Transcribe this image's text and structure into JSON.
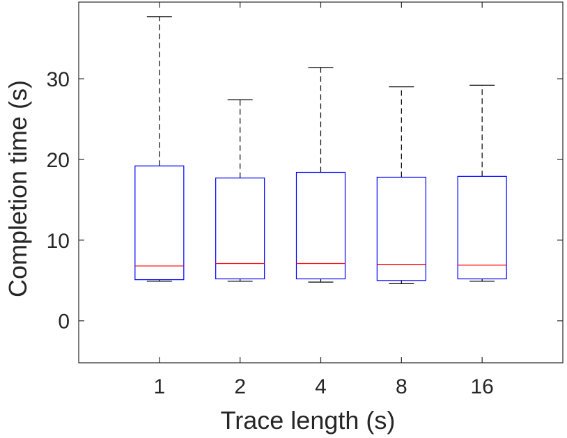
{
  "chart_data": {
    "type": "boxplot",
    "title": "",
    "xlabel": "Trace length (s)",
    "ylabel": "Completion time (s)",
    "categories": [
      "1",
      "2",
      "4",
      "8",
      "16"
    ],
    "ylim": [
      -5.2,
      39.5
    ],
    "yticks": [
      0,
      10,
      20,
      30
    ],
    "ytick_labels": [
      "0",
      "10",
      "20",
      "30"
    ],
    "grid": false,
    "legend": "none",
    "boxes": [
      {
        "category": "1",
        "whisker_low": 4.9,
        "q1": 5.1,
        "median": 6.8,
        "q3": 19.2,
        "whisker_high": 37.7
      },
      {
        "category": "2",
        "whisker_low": 4.9,
        "q1": 5.2,
        "median": 7.1,
        "q3": 17.7,
        "whisker_high": 27.4
      },
      {
        "category": "4",
        "whisker_low": 4.8,
        "q1": 5.2,
        "median": 7.1,
        "q3": 18.4,
        "whisker_high": 31.4
      },
      {
        "category": "8",
        "whisker_low": 4.6,
        "q1": 5.0,
        "median": 7.0,
        "q3": 17.8,
        "whisker_high": 29.0
      },
      {
        "category": "16",
        "whisker_low": 4.9,
        "q1": 5.2,
        "median": 6.9,
        "q3": 17.9,
        "whisker_high": 29.2
      }
    ],
    "colors": {
      "box": "#0000ff",
      "median": "#ff0000",
      "whisker": "#000000",
      "axis": "#262626"
    }
  }
}
